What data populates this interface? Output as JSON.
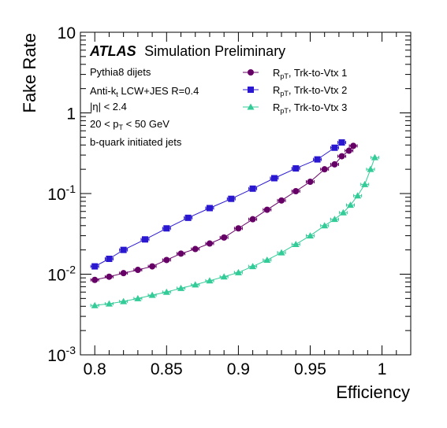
{
  "chart_data": {
    "type": "scatter",
    "title": "",
    "xlabel": "Efficiency",
    "ylabel": "Fake Rate",
    "xlim": [
      0.79,
      1.02
    ],
    "ylim": [
      0.001,
      10
    ],
    "yscale": "log",
    "x_ticks": [
      "0.8",
      "0.85",
      "0.9",
      "0.95",
      "1"
    ],
    "y_ticks": [
      {
        "base": "10",
        "exp": "-3"
      },
      {
        "base": "10",
        "exp": "-2"
      },
      {
        "base": "10",
        "exp": "-1"
      },
      {
        "base": "1",
        "exp": ""
      },
      {
        "base": "10",
        "exp": ""
      }
    ],
    "annotations": {
      "atlas": "ATLAS",
      "atlas_sub": "Simulation Preliminary",
      "line1": "Pythia8 dijets",
      "line2_a": "Anti-k",
      "line2_sub": "t",
      "line2_b": " LCW+JES R=0.4",
      "line3": "|η| < 2.4",
      "line4_a": "20 < p",
      "line4_sub": "T",
      "line4_b": " < 50 GeV",
      "line5": "b-quark initiated jets"
    },
    "legend_position": "top-right",
    "series": [
      {
        "name": "R",
        "name_sub": "pT",
        "name_rest": ", Trk-to-Vtx 1",
        "color": "#660066",
        "marker": "circle",
        "x": [
          0.8,
          0.81,
          0.82,
          0.83,
          0.84,
          0.85,
          0.86,
          0.87,
          0.88,
          0.89,
          0.9,
          0.91,
          0.92,
          0.93,
          0.94,
          0.95,
          0.96,
          0.967,
          0.972,
          0.977,
          0.98
        ],
        "y": [
          0.0085,
          0.0093,
          0.0103,
          0.0113,
          0.0125,
          0.015,
          0.018,
          0.0205,
          0.024,
          0.0285,
          0.037,
          0.048,
          0.063,
          0.082,
          0.107,
          0.14,
          0.2,
          0.23,
          0.29,
          0.34,
          0.39
        ]
      },
      {
        "name": "R",
        "name_sub": "pT",
        "name_rest": ", Trk-to-Vtx 2",
        "color": "#2a18d0",
        "marker": "square",
        "x": [
          0.8,
          0.81,
          0.82,
          0.835,
          0.85,
          0.865,
          0.88,
          0.895,
          0.91,
          0.925,
          0.94,
          0.955,
          0.967,
          0.972
        ],
        "y": [
          0.0125,
          0.0155,
          0.02,
          0.027,
          0.037,
          0.05,
          0.066,
          0.086,
          0.115,
          0.155,
          0.205,
          0.265,
          0.37,
          0.43
        ]
      },
      {
        "name": "R",
        "name_sub": "pT",
        "name_rest": ", Trk-to-Vtx 3",
        "color": "#33cc99",
        "marker": "triangle",
        "x": [
          0.8,
          0.81,
          0.82,
          0.83,
          0.84,
          0.85,
          0.86,
          0.87,
          0.88,
          0.89,
          0.9,
          0.91,
          0.92,
          0.93,
          0.94,
          0.95,
          0.96,
          0.967,
          0.973,
          0.978,
          0.983,
          0.988,
          0.992,
          0.995
        ],
        "y": [
          0.0041,
          0.0043,
          0.0046,
          0.005,
          0.0055,
          0.006,
          0.0067,
          0.0074,
          0.0083,
          0.0093,
          0.0105,
          0.0125,
          0.015,
          0.0185,
          0.0235,
          0.03,
          0.04,
          0.048,
          0.058,
          0.072,
          0.094,
          0.13,
          0.2,
          0.28
        ]
      }
    ]
  }
}
